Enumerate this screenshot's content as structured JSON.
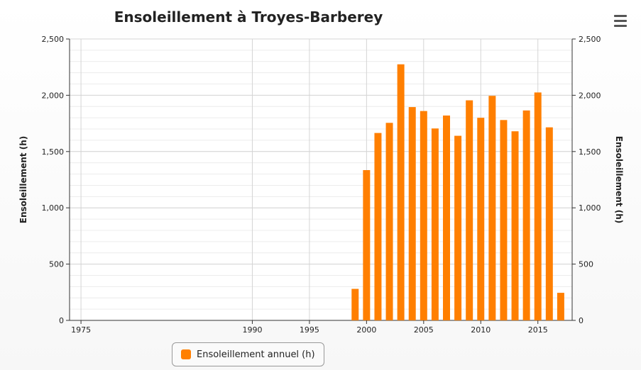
{
  "chart_data": {
    "type": "bar",
    "title": "Ensoleillement à Troyes-Barberey",
    "ylabel_left": "Ensoleillement (h)",
    "ylabel_right": "Ensoleillement (h)",
    "xlim": [
      1974,
      2018
    ],
    "ylim": [
      0,
      2500
    ],
    "x_ticks": [
      1975,
      1990,
      1995,
      2000,
      2005,
      2010,
      2015
    ],
    "y_ticks": [
      0,
      500,
      1000,
      1500,
      2000,
      2500
    ],
    "y_tick_labels": [
      "0",
      "500",
      "1,000",
      "1,500",
      "2,000",
      "2,500"
    ],
    "grid": true,
    "legend_position": "bottom",
    "series": [
      {
        "name": "Ensoleillement annuel (h)",
        "color": "#ff7f00",
        "x": [
          1999,
          2000,
          2001,
          2002,
          2003,
          2004,
          2005,
          2006,
          2007,
          2008,
          2009,
          2010,
          2011,
          2012,
          2013,
          2014,
          2015,
          2016,
          2017
        ],
        "values": [
          280,
          1335,
          1665,
          1755,
          2275,
          1895,
          1860,
          1705,
          1820,
          1640,
          1955,
          1800,
          1995,
          1780,
          1680,
          1865,
          2025,
          1715,
          245
        ]
      }
    ]
  },
  "ui": {
    "menu_icon": "hamburger-menu-icon"
  }
}
